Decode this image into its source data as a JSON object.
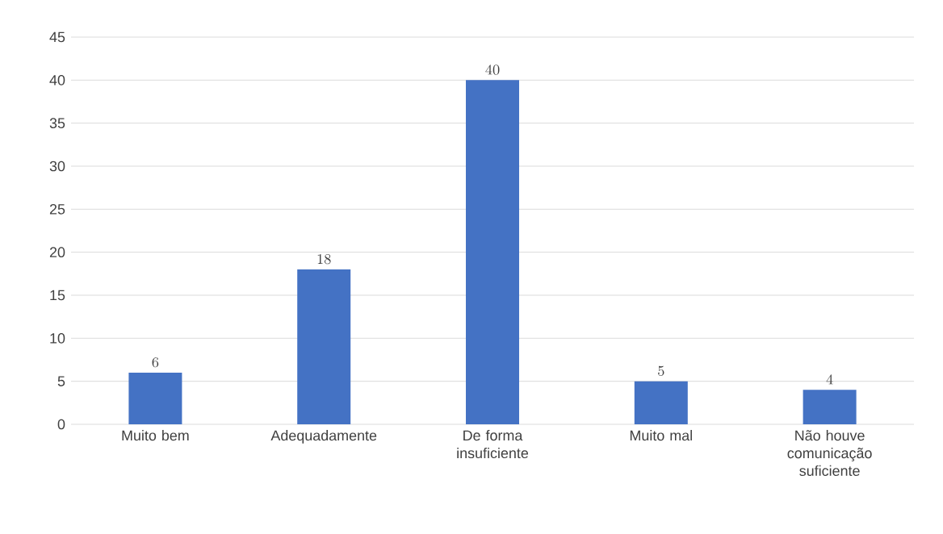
{
  "chart_data": {
    "type": "bar",
    "categories": [
      "Muito bem",
      "Adequadamente",
      "De forma insuficiente",
      "Muito mal",
      "Não houve comunicação suficiente"
    ],
    "values": [
      6,
      18,
      40,
      5,
      4
    ],
    "color": "#4472c4",
    "ylim": [
      0,
      45
    ],
    "yticks": [
      0,
      5,
      10,
      15,
      20,
      25,
      30,
      35,
      40,
      45
    ],
    "grid": "y",
    "data_labels": true
  }
}
